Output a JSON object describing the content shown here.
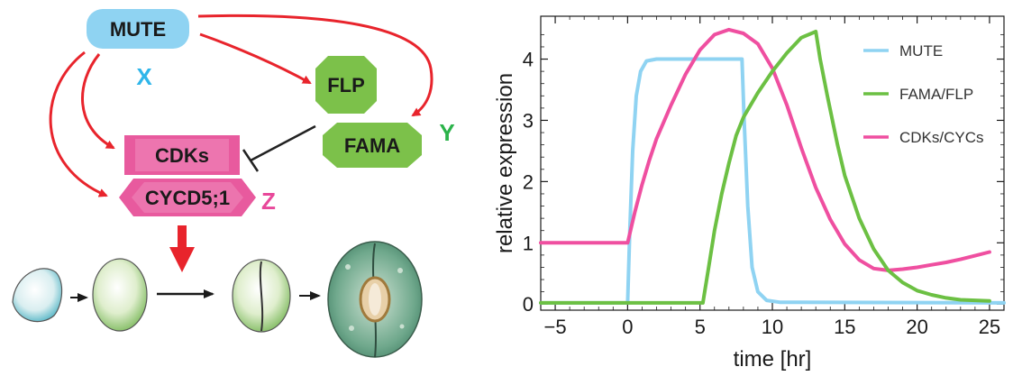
{
  "diagram": {
    "nodes": {
      "mute": "MUTE",
      "flp": "FLP",
      "fama": "FAMA",
      "cdks": "CDKs",
      "cycd": "CYCD5;1"
    },
    "variables": {
      "x": "X",
      "y": "Y",
      "z": "Z"
    },
    "colors": {
      "mute_fill": "#8fd3f2",
      "green_node": "#7cc14a",
      "pink_node": "#e85a9e",
      "activation_arrow": "#e8242c",
      "inhibition": "#222222",
      "x_label": "#2fb6ea",
      "y_label": "#2bb34a",
      "z_label": "#e8489a"
    }
  },
  "chart_data": {
    "type": "line",
    "title": "",
    "xlabel": "time [hr]",
    "ylabel": "relative expression",
    "xlim": [
      -6,
      26
    ],
    "ylim": [
      -0.1,
      4.7
    ],
    "xticks": [
      -5,
      0,
      5,
      10,
      15,
      20,
      25
    ],
    "yticks": [
      0,
      1,
      2,
      3,
      4
    ],
    "xtick_labels": [
      "−5",
      "0",
      "5",
      "10",
      "15",
      "20",
      "25"
    ],
    "ytick_labels": [
      "0",
      "1",
      "2",
      "3",
      "4"
    ],
    "grid": false,
    "legend_position": "top-right",
    "series": [
      {
        "name": "MUTE",
        "color": "#8fd3f2",
        "points": [
          [
            -6,
            0.02
          ],
          [
            0,
            0.02
          ],
          [
            0.15,
            1.2
          ],
          [
            0.35,
            2.5
          ],
          [
            0.6,
            3.4
          ],
          [
            0.9,
            3.8
          ],
          [
            1.3,
            3.97
          ],
          [
            2,
            4.0
          ],
          [
            7.9,
            4.0
          ],
          [
            8.05,
            3.0
          ],
          [
            8.3,
            1.6
          ],
          [
            8.6,
            0.6
          ],
          [
            9,
            0.2
          ],
          [
            9.6,
            0.06
          ],
          [
            10.5,
            0.03
          ],
          [
            26,
            0.02
          ]
        ]
      },
      {
        "name": "FAMA/FLP",
        "color": "#6cc043",
        "points": [
          [
            -6,
            0.02
          ],
          [
            5.2,
            0.02
          ],
          [
            5.6,
            0.6
          ],
          [
            6,
            1.2
          ],
          [
            6.5,
            1.8
          ],
          [
            7,
            2.3
          ],
          [
            7.5,
            2.75
          ],
          [
            8,
            3.05
          ],
          [
            9,
            3.45
          ],
          [
            10,
            3.8
          ],
          [
            11,
            4.1
          ],
          [
            12,
            4.35
          ],
          [
            13,
            4.45
          ],
          [
            13.3,
            4.0
          ],
          [
            13.8,
            3.4
          ],
          [
            14.5,
            2.6
          ],
          [
            15,
            2.1
          ],
          [
            16,
            1.4
          ],
          [
            17,
            0.9
          ],
          [
            18,
            0.55
          ],
          [
            19,
            0.35
          ],
          [
            20,
            0.22
          ],
          [
            21,
            0.15
          ],
          [
            22,
            0.1
          ],
          [
            23,
            0.07
          ],
          [
            24,
            0.06
          ],
          [
            25,
            0.05
          ]
        ]
      },
      {
        "name": "CDKs/CYCs",
        "color": "#ef4fa0",
        "points": [
          [
            -6,
            1.0
          ],
          [
            0,
            1.0
          ],
          [
            0.5,
            1.5
          ],
          [
            1,
            1.95
          ],
          [
            1.5,
            2.35
          ],
          [
            2,
            2.7
          ],
          [
            3,
            3.25
          ],
          [
            4,
            3.75
          ],
          [
            5,
            4.15
          ],
          [
            6,
            4.4
          ],
          [
            7,
            4.48
          ],
          [
            8,
            4.42
          ],
          [
            9,
            4.25
          ],
          [
            10,
            3.85
          ],
          [
            11,
            3.25
          ],
          [
            12,
            2.55
          ],
          [
            13,
            1.9
          ],
          [
            14,
            1.38
          ],
          [
            15,
            0.98
          ],
          [
            16,
            0.72
          ],
          [
            17,
            0.58
          ],
          [
            18,
            0.55
          ],
          [
            19,
            0.57
          ],
          [
            20,
            0.6
          ],
          [
            21,
            0.64
          ],
          [
            22,
            0.68
          ],
          [
            23,
            0.73
          ],
          [
            24,
            0.79
          ],
          [
            25,
            0.85
          ]
        ]
      }
    ]
  }
}
